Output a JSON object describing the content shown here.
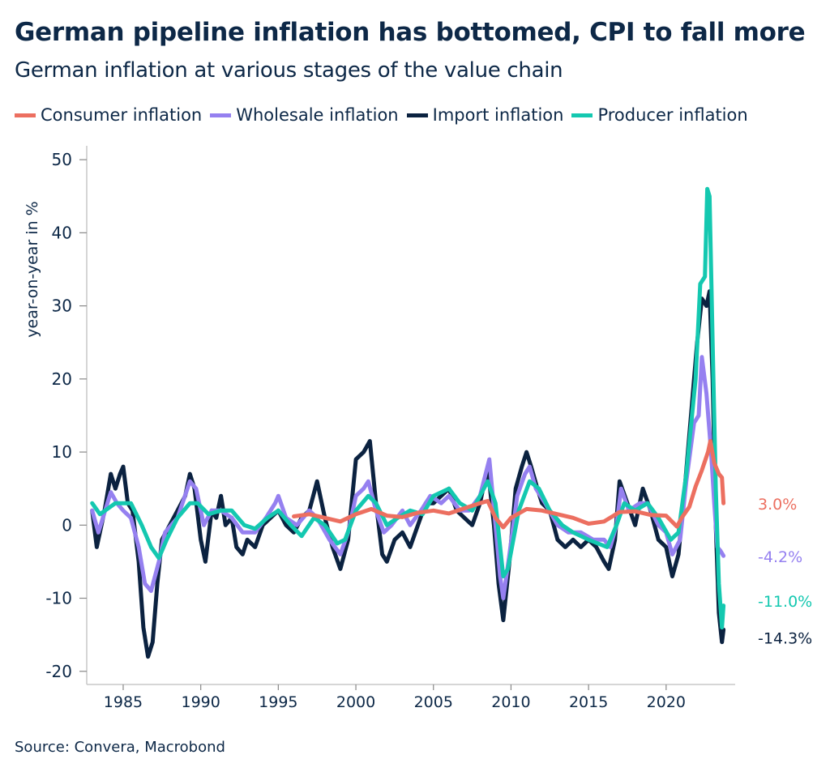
{
  "title": "German pipeline inflation has bottomed, CPI to fall more",
  "subtitle": "German inflation at various stages of the value chain",
  "source": "Source: Convera, Macrobond",
  "chart_data": {
    "type": "line",
    "title": "German pipeline inflation has bottomed, CPI to fall more",
    "subtitle": "German inflation at various stages of the value chain",
    "xlabel": "",
    "ylabel": "year-on-year in %",
    "xlim": [
      1982.65,
      2024.45
    ],
    "ylim": [
      -21.8,
      51.9
    ],
    "x_ticks": [
      1985,
      1990,
      1995,
      2000,
      2005,
      2010,
      2015,
      2020
    ],
    "y_ticks": [
      -20,
      -10,
      0,
      10,
      20,
      30,
      40,
      50
    ],
    "grid": false,
    "legend": "top",
    "series": [
      {
        "name": "Import inflation",
        "color": "#0b2240",
        "end_label": "-14.3%",
        "x": [
          1983.0,
          1983.3,
          1983.8,
          1984.2,
          1984.5,
          1984.8,
          1985.0,
          1985.3,
          1985.6,
          1986.0,
          1986.3,
          1986.6,
          1986.9,
          1987.2,
          1987.5,
          1988.0,
          1988.5,
          1989.0,
          1989.3,
          1989.6,
          1990.0,
          1990.3,
          1990.7,
          1991.0,
          1991.3,
          1991.6,
          1992.0,
          1992.3,
          1992.7,
          1993.0,
          1993.5,
          1994.0,
          1994.5,
          1995.0,
          1995.5,
          1996.0,
          1996.5,
          1997.0,
          1997.5,
          1998.0,
          1998.5,
          1999.0,
          1999.5,
          2000.0,
          2000.5,
          2000.9,
          2001.3,
          2001.7,
          2002.0,
          2002.5,
          2003.0,
          2003.5,
          2004.0,
          2004.5,
          2005.0,
          2005.5,
          2006.0,
          2006.5,
          2007.0,
          2007.5,
          2008.0,
          2008.5,
          2008.9,
          2009.2,
          2009.5,
          2009.9,
          2010.3,
          2010.7,
          2011.0,
          2011.3,
          2011.7,
          2012.0,
          2012.5,
          2013.0,
          2013.5,
          2014.0,
          2014.5,
          2015.0,
          2015.5,
          2016.0,
          2016.3,
          2016.7,
          2017.0,
          2017.5,
          2018.0,
          2018.5,
          2019.0,
          2019.5,
          2020.0,
          2020.4,
          2020.8,
          2021.2,
          2021.6,
          2022.0,
          2022.3,
          2022.6,
          2022.8,
          2023.0,
          2023.2,
          2023.4,
          2023.6,
          2023.7
        ],
        "y": [
          2,
          -3,
          2,
          7,
          5,
          7,
          8,
          3,
          2,
          -5,
          -14,
          -18,
          -16,
          -8,
          -2,
          0,
          2,
          4,
          7,
          5,
          -2,
          -5,
          2,
          1,
          4,
          0,
          1,
          -3,
          -4,
          -2,
          -3,
          0,
          1,
          2,
          0,
          -1,
          1,
          2,
          6,
          1,
          -3,
          -6,
          -2,
          9,
          10,
          11.5,
          3,
          -4,
          -5,
          -2,
          -1,
          -3,
          0,
          3,
          3,
          4,
          5,
          2,
          1,
          0,
          3,
          8,
          0,
          -8,
          -13,
          -5,
          5,
          8,
          10,
          8,
          5,
          3,
          2,
          -2,
          -3,
          -2,
          -3,
          -2,
          -3,
          -5,
          -6,
          -2,
          6,
          3,
          0,
          5,
          2,
          -2,
          -3,
          -7,
          -4,
          5,
          15,
          25,
          31,
          30,
          32,
          20,
          0,
          -12,
          -16,
          -14.3
        ]
      },
      {
        "name": "Wholesale inflation",
        "color": "#9580f0",
        "end_label": "-4.2%",
        "x": [
          1983.0,
          1983.4,
          1984.2,
          1984.6,
          1985.0,
          1985.5,
          1986.0,
          1986.4,
          1986.8,
          1987.3,
          1987.7,
          1988.5,
          1989.3,
          1989.7,
          1990.2,
          1990.7,
          1991.3,
          1992.0,
          1992.7,
          1993.5,
          1994.2,
          1994.8,
          1995.0,
          1995.5,
          1996.2,
          1997.0,
          1997.5,
          1998.3,
          1999.0,
          1999.5,
          2000.0,
          2000.5,
          2000.8,
          2001.3,
          2001.8,
          2002.3,
          2003.0,
          2003.5,
          2004.2,
          2004.8,
          2005.5,
          2006.0,
          2006.7,
          2007.3,
          2008.0,
          2008.6,
          2009.0,
          2009.3,
          2009.5,
          2009.9,
          2010.4,
          2010.9,
          2011.2,
          2011.6,
          2012.2,
          2013.0,
          2013.7,
          2014.5,
          2015.3,
          2016.0,
          2016.4,
          2016.8,
          2017.1,
          2017.6,
          2018.3,
          2018.8,
          2019.5,
          2020.0,
          2020.4,
          2020.9,
          2021.3,
          2021.8,
          2022.1,
          2022.3,
          2022.6,
          2022.9,
          2023.1,
          2023.3,
          2023.5,
          2023.7
        ],
        "y": [
          2,
          -1,
          4.5,
          3,
          2,
          1,
          -3,
          -8,
          -9,
          -5,
          -1,
          1,
          6,
          5,
          0,
          2,
          2,
          1,
          -1,
          -1,
          1,
          3,
          4,
          1,
          0,
          2,
          1,
          -2,
          -4,
          -1,
          4,
          5,
          6,
          2,
          -1,
          0,
          2,
          0,
          2,
          4,
          3,
          4,
          2,
          2,
          4,
          9,
          0,
          -7,
          -10,
          -4,
          4,
          7,
          8,
          5,
          3,
          0,
          -1,
          -1,
          -2,
          -2,
          -3,
          0,
          5,
          2,
          3,
          3,
          0,
          -1,
          -4,
          -2,
          6,
          14,
          15,
          23,
          18,
          10,
          3,
          -3,
          -3.5,
          -4.2
        ]
      },
      {
        "name": "Producer inflation",
        "color": "#14c8b0",
        "end_label": "-11.0%",
        "x": [
          1983.0,
          1983.5,
          1984.5,
          1985.5,
          1986.2,
          1986.8,
          1987.3,
          1987.8,
          1988.5,
          1989.3,
          1989.8,
          1990.5,
          1991.3,
          1992.0,
          1992.8,
          1993.5,
          1994.3,
          1995.0,
          1995.8,
          1996.5,
          1997.3,
          1998.0,
          1998.8,
          1999.3,
          2000.0,
          2000.8,
          2001.3,
          2002.0,
          2002.7,
          2003.5,
          2004.3,
          2005.0,
          2006.0,
          2006.7,
          2007.5,
          2008.5,
          2009.0,
          2009.5,
          2009.8,
          2010.5,
          2011.2,
          2011.8,
          2012.5,
          2013.3,
          2014.0,
          2015.0,
          2016.2,
          2016.8,
          2017.3,
          2018.0,
          2018.8,
          2019.5,
          2020.3,
          2020.8,
          2021.3,
          2021.9,
          2022.2,
          2022.5,
          2022.65,
          2022.8,
          2023.0,
          2023.2,
          2023.4,
          2023.6,
          2023.7
        ],
        "y": [
          3,
          1.5,
          3,
          3,
          0,
          -3,
          -4.5,
          -2,
          1,
          3,
          3,
          1.5,
          2,
          2,
          0,
          -0.5,
          1,
          2,
          0,
          -1.5,
          1,
          0,
          -2.5,
          -2,
          2,
          4,
          3,
          0,
          1,
          2,
          1.5,
          4,
          5,
          3,
          2,
          6,
          3,
          -7,
          -6,
          2,
          6,
          5,
          2,
          0,
          -1,
          -2,
          -3,
          0,
          3,
          2,
          3,
          1,
          -2,
          -1,
          7,
          20,
          33,
          34,
          46,
          45,
          25,
          5,
          -8,
          -14,
          -11
        ]
      },
      {
        "name": "Consumer inflation",
        "color": "#ec6f60",
        "end_label": "3.0%",
        "x": [
          1996.0,
          1997.0,
          1998.0,
          1999.0,
          2000.0,
          2001.0,
          2002.0,
          2003.0,
          2004.0,
          2005.0,
          2006.0,
          2007.0,
          2008.0,
          2008.5,
          2009.0,
          2009.5,
          2010.0,
          2011.0,
          2012.0,
          2013.0,
          2014.0,
          2015.0,
          2016.0,
          2017.0,
          2018.0,
          2019.0,
          2020.0,
          2020.7,
          2021.0,
          2021.5,
          2021.9,
          2022.3,
          2022.7,
          2022.85,
          2023.1,
          2023.4,
          2023.6,
          2023.7
        ],
        "y": [
          1.2,
          1.5,
          1,
          0.5,
          1.5,
          2.2,
          1.3,
          1.1,
          1.7,
          2,
          1.6,
          2.3,
          3,
          3.3,
          1,
          -0.3,
          1,
          2.2,
          2,
          1.5,
          1,
          0.2,
          0.5,
          1.8,
          1.9,
          1.4,
          1.3,
          -0.2,
          1,
          2.5,
          5.3,
          7.5,
          10,
          11.5,
          8.5,
          7,
          6.5,
          3
        ]
      }
    ]
  }
}
